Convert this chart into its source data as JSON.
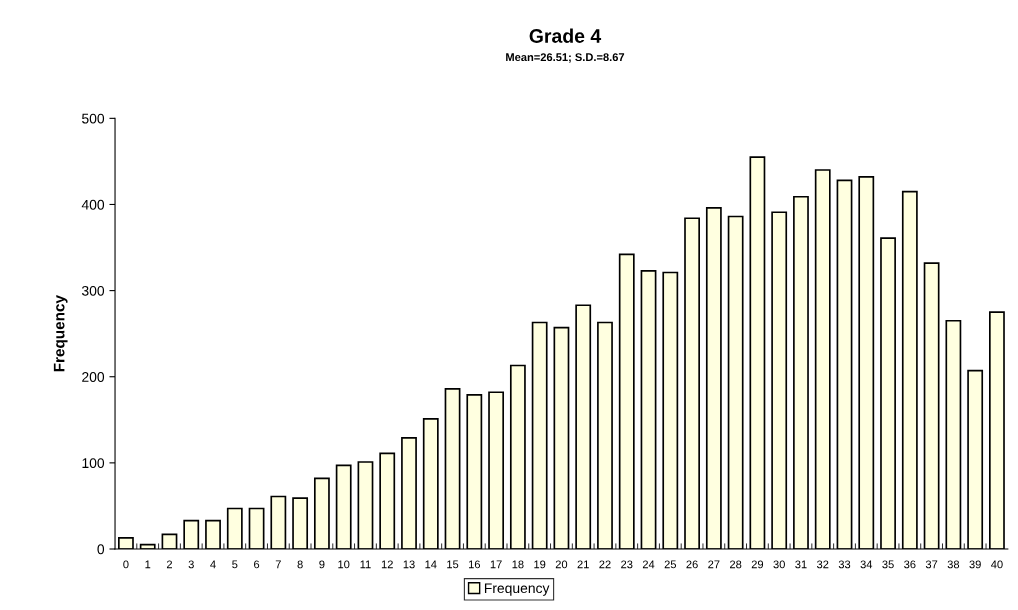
{
  "chart_data": {
    "type": "bar",
    "title": "Grade 4",
    "subtitle": "Mean=26.51; S.D.=8.67",
    "ylabel": "Frequency",
    "categories": [
      "0",
      "1",
      "2",
      "3",
      "4",
      "5",
      "6",
      "7",
      "8",
      "9",
      "10",
      "11",
      "12",
      "13",
      "14",
      "15",
      "16",
      "17",
      "18",
      "19",
      "20",
      "21",
      "22",
      "23",
      "24",
      "25",
      "26",
      "27",
      "28",
      "29",
      "30",
      "31",
      "32",
      "33",
      "34",
      "35",
      "36",
      "37",
      "38",
      "39",
      "40"
    ],
    "series": [
      {
        "name": "Frequency",
        "color": "#ffffe0",
        "values": [
          13,
          5,
          17,
          33,
          33,
          47,
          47,
          61,
          59,
          82,
          97,
          101,
          111,
          129,
          151,
          186,
          179,
          182,
          213,
          263,
          257,
          283,
          263,
          342,
          323,
          321,
          384,
          396,
          386,
          455,
          391,
          409,
          440,
          428,
          432,
          361,
          415,
          332,
          265,
          207,
          275
        ]
      }
    ],
    "ylim": [
      0,
      500
    ],
    "yticks": [
      0,
      100,
      200,
      300,
      400,
      500
    ],
    "grid": false,
    "legend": "bottom"
  }
}
